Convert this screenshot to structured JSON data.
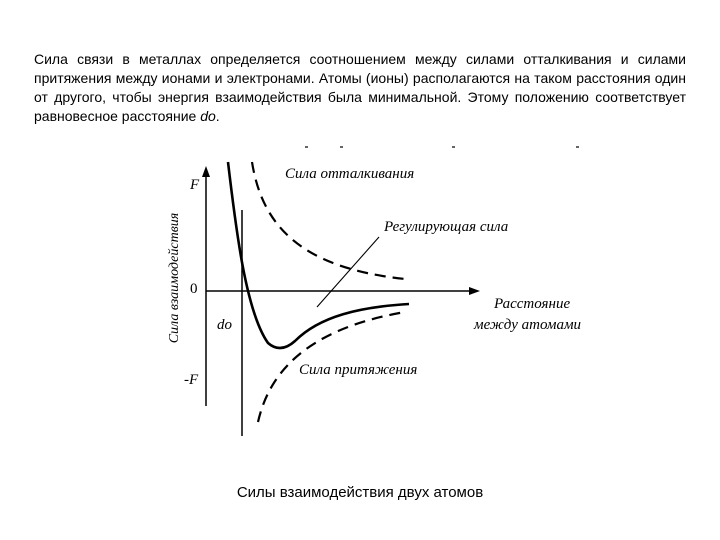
{
  "intro": {
    "text": "Сила связи в металлах определяется соотношением между силами отталкивания и силами притяжения между ионами и электронами. Атомы (ионы) располагаются на таком расстояния один от другого, чтобы энергия взаимодействия была минимальной. Этому положению соответствует равновесное расстояние ",
    "variable": "do",
    "end": "."
  },
  "diagram": {
    "y_axis_label": "Сила взаимодействия",
    "label_F": "F",
    "label_zero": "0",
    "label_minus_F": "-F",
    "label_do": "do",
    "repulsion_label": "Сила отталкивания",
    "resultant_label": "Регулирующая сила",
    "attraction_label": "Сила притяжения",
    "x_axis_label_line1": "Расстояние",
    "x_axis_label_line2": "между атомами"
  },
  "caption": "Силы взаимодействия двух атомов"
}
